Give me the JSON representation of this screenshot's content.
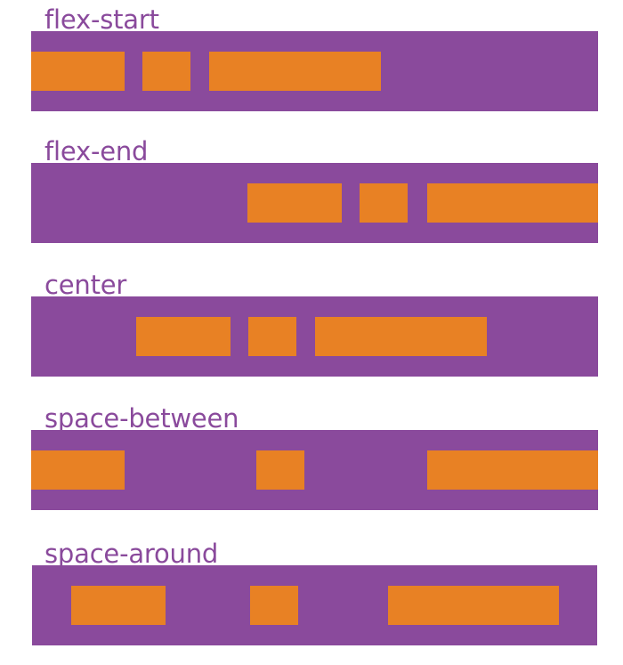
{
  "colors": {
    "container": "#8a4a9c",
    "item": "#e88124",
    "label": "#8a4a9c",
    "background": "#ffffff"
  },
  "rows": [
    {
      "id": "flex-start",
      "label": "flex-start"
    },
    {
      "id": "flex-end",
      "label": "flex-end"
    },
    {
      "id": "center",
      "label": "center"
    },
    {
      "id": "space-between",
      "label": "space-between"
    },
    {
      "id": "space-around",
      "label": "space-around"
    }
  ]
}
